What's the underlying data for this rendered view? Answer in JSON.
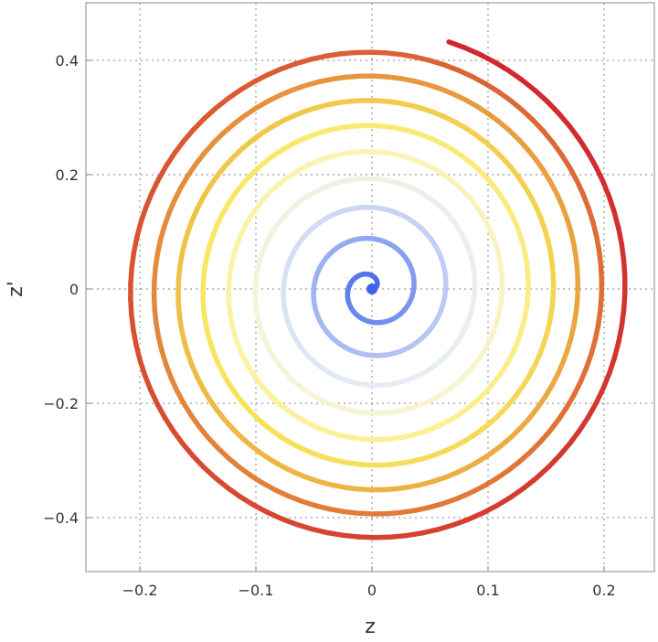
{
  "chart_data": {
    "type": "line",
    "title": "",
    "xlabel": "z",
    "ylabel": "z'",
    "xlim": [
      -0.25,
      0.245
    ],
    "ylim": [
      -0.49,
      0.5
    ],
    "x_ticks": [
      {
        "value": -0.2,
        "label": "−0.2"
      },
      {
        "value": -0.1,
        "label": "−0.1"
      },
      {
        "value": 0,
        "label": "0"
      },
      {
        "value": 0.1,
        "label": "0.1"
      },
      {
        "value": 0.2,
        "label": "0.2"
      }
    ],
    "y_ticks": [
      {
        "value": -0.4,
        "label": "−0.4"
      },
      {
        "value": -0.2,
        "label": "−0.2"
      },
      {
        "value": 0,
        "label": "0"
      },
      {
        "value": 0.2,
        "label": "0.2"
      },
      {
        "value": 0.4,
        "label": "0.4"
      }
    ],
    "grid": true,
    "series": [
      {
        "style": "outward spiral",
        "start": [
          0,
          0
        ],
        "end": [
          0.067,
          0.437
        ],
        "max_x": 0.222,
        "min_x": -0.224,
        "max_y": 0.453,
        "min_y": -0.446,
        "turns": 9,
        "colormap": [
          "#3f62e6",
          "#7b95ee",
          "#b5c4f3",
          "#e6ecf6",
          "#f7f4d6",
          "#fbf2a0",
          "#f9e660",
          "#f0c347",
          "#e5913d",
          "#db5f33",
          "#d1262e"
        ]
      }
    ]
  }
}
